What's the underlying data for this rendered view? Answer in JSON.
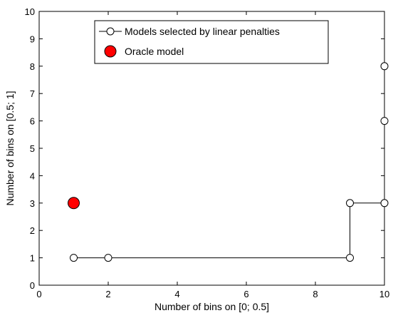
{
  "chart_data": {
    "type": "scatter",
    "xlabel": "Number of bins on [0; 0.5]",
    "ylabel": "Number of bins on [0.5; 1]",
    "xlim": [
      0,
      10
    ],
    "ylim": [
      0,
      10
    ],
    "xticks": [
      0,
      2,
      4,
      6,
      8,
      10
    ],
    "yticks": [
      0,
      1,
      2,
      3,
      4,
      5,
      6,
      7,
      8,
      9,
      10
    ],
    "grid": false,
    "legend_position": "top",
    "series": [
      {
        "name": "Models selected by linear penalties",
        "style": "stairs-line-open-circle",
        "color": "#000000",
        "points": [
          {
            "x": 1,
            "y": 1
          },
          {
            "x": 2,
            "y": 1
          },
          {
            "x": 9,
            "y": 1
          },
          {
            "x": 9,
            "y": 3
          },
          {
            "x": 10,
            "y": 3
          },
          {
            "x": 10,
            "y": 6
          },
          {
            "x": 10,
            "y": 8
          }
        ]
      },
      {
        "name": "Oracle model",
        "style": "filled-circle",
        "color": "#ff0000",
        "points": [
          {
            "x": 1,
            "y": 3
          }
        ]
      }
    ]
  }
}
